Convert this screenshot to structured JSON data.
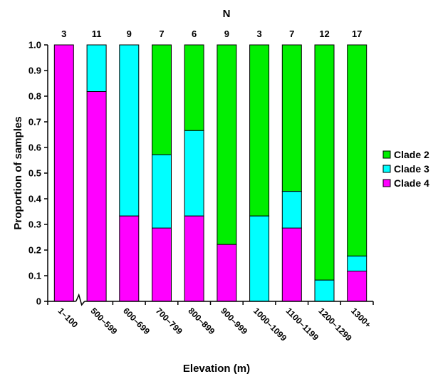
{
  "chart_data": {
    "type": "bar",
    "stacked": true,
    "title": "N",
    "xlabel": "Elevation (m)",
    "ylabel": "Proportion of samples",
    "ylim": [
      0,
      1.0
    ],
    "yticks": [
      "0",
      "0.1",
      "0.2",
      "0.3",
      "0.4",
      "0.5",
      "0.6",
      "0.7",
      "0.8",
      "0.9",
      "1.0"
    ],
    "categories": [
      "1–100",
      "500–599",
      "600–699",
      "700–799",
      "800–899",
      "900–999",
      "1000–1099",
      "1100–1199",
      "1200–1299",
      "1300+"
    ],
    "n_values": [
      "3",
      "11",
      "9",
      "7",
      "6",
      "9",
      "3",
      "7",
      "12",
      "17"
    ],
    "axis_break": "between 1–100 and 500–599",
    "legend_position": "right",
    "series": [
      {
        "name": "Clade 4",
        "color": "#ff00ff",
        "values": [
          1.0,
          0.818,
          0.333,
          0.286,
          0.333,
          0.222,
          0.0,
          0.286,
          0.0,
          0.118
        ]
      },
      {
        "name": "Clade 3",
        "color": "#00ffff",
        "values": [
          0.0,
          0.182,
          0.667,
          0.286,
          0.333,
          0.0,
          0.333,
          0.143,
          0.083,
          0.059
        ]
      },
      {
        "name": "Clade 2",
        "color": "#00ee00",
        "values": [
          0.0,
          0.0,
          0.0,
          0.428,
          0.334,
          0.778,
          0.667,
          0.571,
          0.917,
          0.823
        ]
      }
    ],
    "legend_order": [
      "Clade 2",
      "Clade 3",
      "Clade 4"
    ]
  }
}
